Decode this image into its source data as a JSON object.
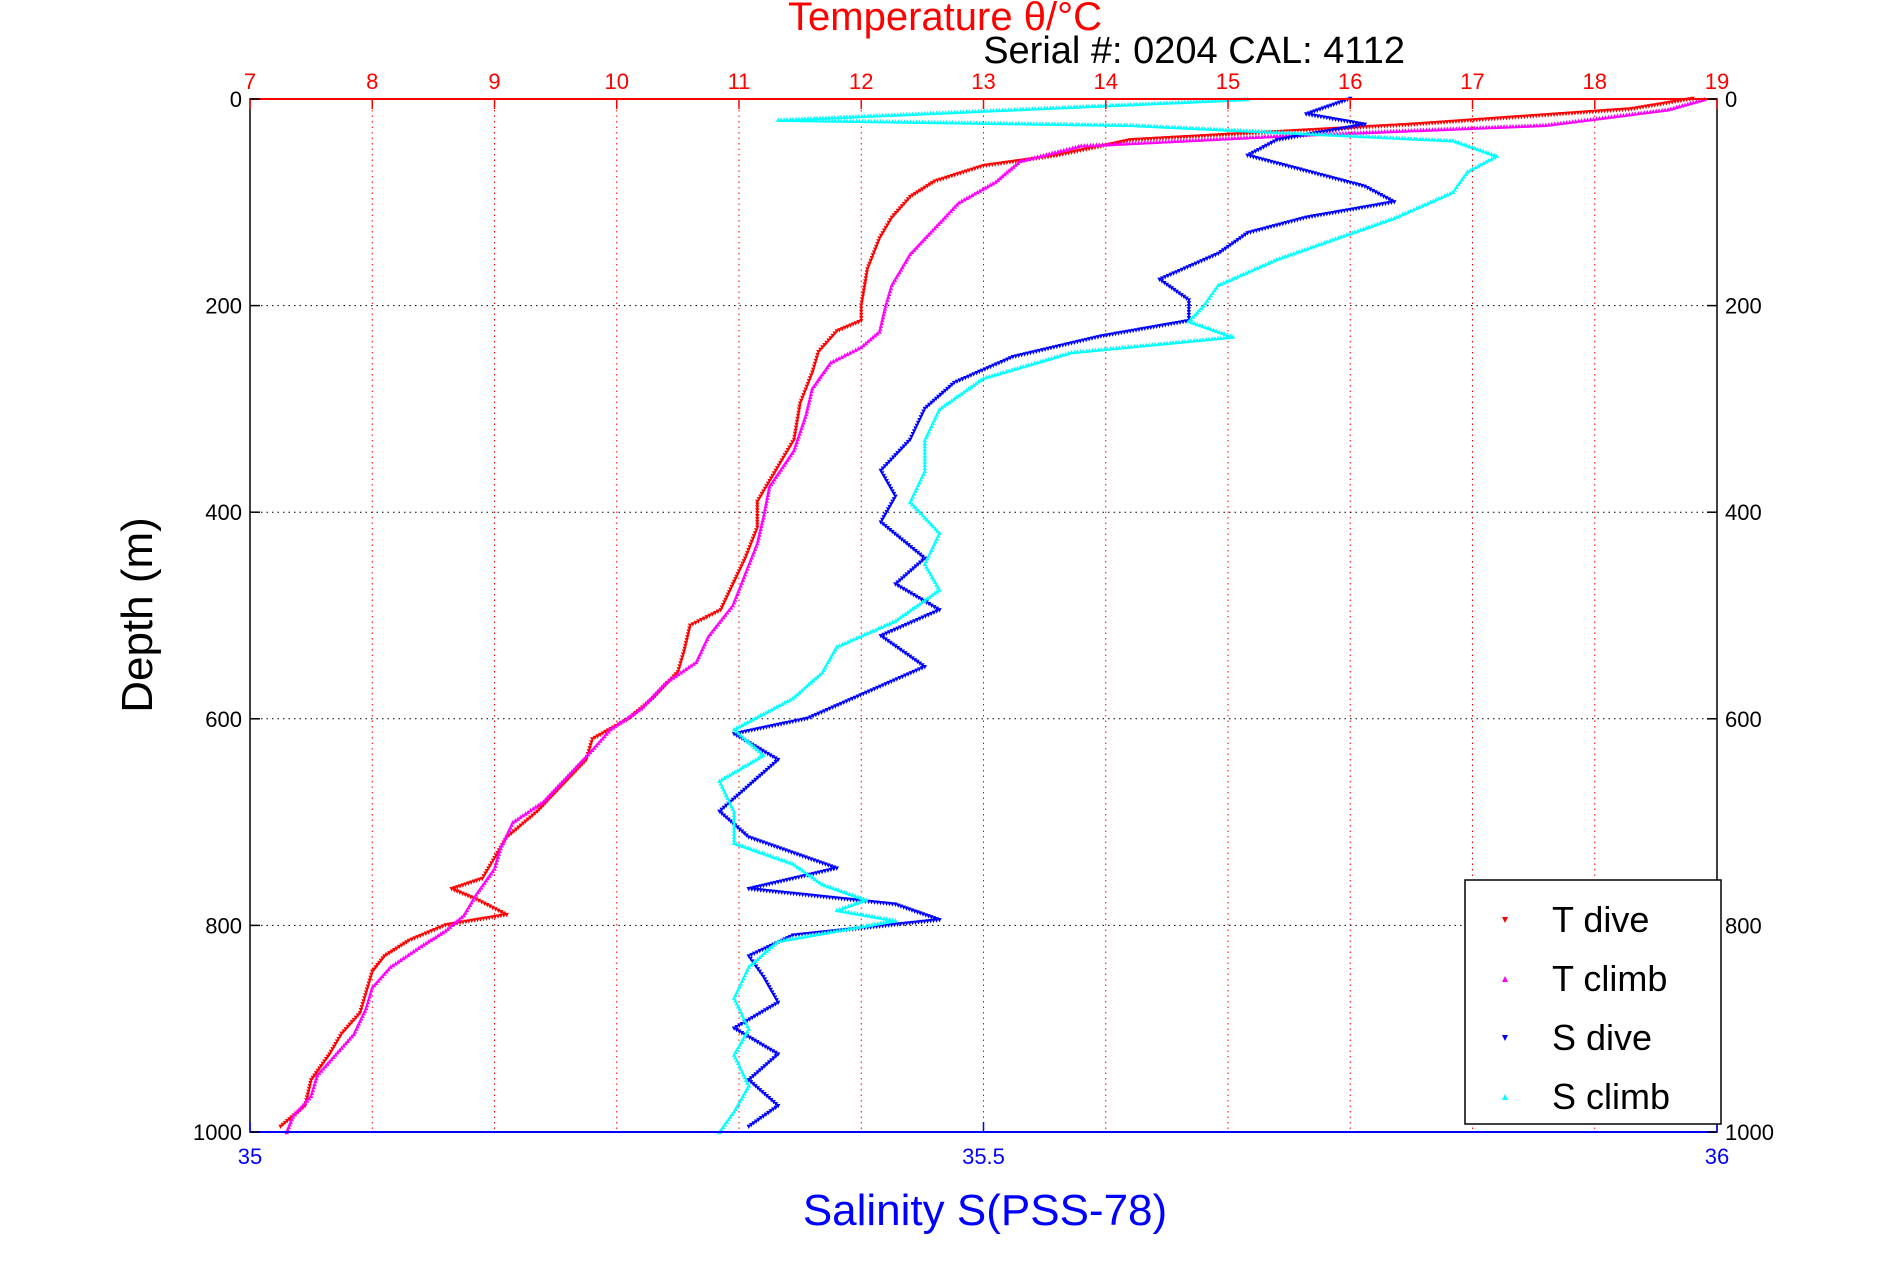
{
  "chart_data": {
    "type": "scatter",
    "title": "Temperature θ/°C",
    "serial_label": "Serial #: 0204  CAL: 4112",
    "ylabel": "Depth (m)",
    "xlabel_bottom": "Salinity S(PSS-78)",
    "ylim": [
      0,
      1000
    ],
    "y_reversed": true,
    "temperature_axis": {
      "range": [
        7,
        19
      ],
      "ticks": [
        7,
        8,
        9,
        10,
        11,
        12,
        13,
        14,
        15,
        16,
        17,
        18,
        19
      ],
      "color": "#ff0000"
    },
    "salinity_axis": {
      "range": [
        35,
        36
      ],
      "ticks": [
        "35",
        "35.5",
        "36"
      ],
      "color": "#0000ff"
    },
    "depth_ticks": [
      0,
      200,
      400,
      600,
      800,
      1000
    ],
    "grid": true,
    "legend_position": "bottom-right",
    "series": [
      {
        "name": "T dive",
        "axis": "temperature",
        "color": "#ff0000",
        "marker": "triangle-down",
        "points": [
          [
            18.8,
            0
          ],
          [
            18.3,
            10
          ],
          [
            16.5,
            25
          ],
          [
            14.2,
            40
          ],
          [
            13.6,
            55
          ],
          [
            13.0,
            65
          ],
          [
            12.6,
            80
          ],
          [
            12.4,
            95
          ],
          [
            12.25,
            115
          ],
          [
            12.15,
            135
          ],
          [
            12.05,
            165
          ],
          [
            12.0,
            200
          ],
          [
            12.0,
            215
          ],
          [
            11.8,
            225
          ],
          [
            11.65,
            245
          ],
          [
            11.6,
            265
          ],
          [
            11.5,
            295
          ],
          [
            11.45,
            330
          ],
          [
            11.3,
            360
          ],
          [
            11.15,
            390
          ],
          [
            11.15,
            415
          ],
          [
            11.05,
            445
          ],
          [
            10.95,
            470
          ],
          [
            10.85,
            495
          ],
          [
            10.6,
            510
          ],
          [
            10.55,
            535
          ],
          [
            10.5,
            555
          ],
          [
            10.3,
            580
          ],
          [
            10.1,
            600
          ],
          [
            9.8,
            620
          ],
          [
            9.75,
            640
          ],
          [
            9.55,
            665
          ],
          [
            9.35,
            690
          ],
          [
            9.1,
            715
          ],
          [
            9.0,
            735
          ],
          [
            8.9,
            755
          ],
          [
            8.65,
            765
          ],
          [
            8.85,
            775
          ],
          [
            9.1,
            790
          ],
          [
            8.6,
            800
          ],
          [
            8.3,
            815
          ],
          [
            8.1,
            830
          ],
          [
            8.0,
            845
          ],
          [
            7.95,
            865
          ],
          [
            7.9,
            885
          ],
          [
            7.75,
            905
          ],
          [
            7.65,
            925
          ],
          [
            7.5,
            950
          ],
          [
            7.45,
            975
          ],
          [
            7.25,
            995
          ]
        ]
      },
      {
        "name": "T climb",
        "axis": "temperature",
        "color": "#ff00ff",
        "marker": "triangle-up",
        "points": [
          [
            18.9,
            0
          ],
          [
            18.6,
            10
          ],
          [
            17.6,
            25
          ],
          [
            15.5,
            35
          ],
          [
            13.8,
            45
          ],
          [
            13.3,
            60
          ],
          [
            13.1,
            80
          ],
          [
            12.8,
            100
          ],
          [
            12.6,
            125
          ],
          [
            12.4,
            150
          ],
          [
            12.25,
            180
          ],
          [
            12.2,
            200
          ],
          [
            12.15,
            225
          ],
          [
            12.0,
            240
          ],
          [
            11.75,
            255
          ],
          [
            11.6,
            280
          ],
          [
            11.55,
            305
          ],
          [
            11.45,
            340
          ],
          [
            11.25,
            375
          ],
          [
            11.2,
            405
          ],
          [
            11.15,
            430
          ],
          [
            11.05,
            460
          ],
          [
            10.95,
            490
          ],
          [
            10.75,
            520
          ],
          [
            10.65,
            545
          ],
          [
            10.4,
            565
          ],
          [
            10.2,
            590
          ],
          [
            9.95,
            610
          ],
          [
            9.8,
            630
          ],
          [
            9.6,
            655
          ],
          [
            9.4,
            680
          ],
          [
            9.15,
            700
          ],
          [
            9.05,
            725
          ],
          [
            9.0,
            745
          ],
          [
            8.85,
            770
          ],
          [
            8.75,
            790
          ],
          [
            8.6,
            805
          ],
          [
            8.4,
            820
          ],
          [
            8.15,
            840
          ],
          [
            8.0,
            860
          ],
          [
            7.95,
            880
          ],
          [
            7.85,
            905
          ],
          [
            7.7,
            925
          ],
          [
            7.55,
            945
          ],
          [
            7.5,
            965
          ],
          [
            7.35,
            985
          ],
          [
            7.3,
            1000
          ]
        ]
      },
      {
        "name": "S dive",
        "axis": "salinity",
        "color": "#0000ff",
        "marker": "triangle-down",
        "points": [
          [
            35.75,
            0
          ],
          [
            35.72,
            15
          ],
          [
            35.76,
            25
          ],
          [
            35.7,
            40
          ],
          [
            35.68,
            55
          ],
          [
            35.72,
            70
          ],
          [
            35.76,
            85
          ],
          [
            35.78,
            100
          ],
          [
            35.72,
            115
          ],
          [
            35.68,
            130
          ],
          [
            35.66,
            150
          ],
          [
            35.62,
            175
          ],
          [
            35.64,
            195
          ],
          [
            35.64,
            215
          ],
          [
            35.58,
            230
          ],
          [
            35.52,
            250
          ],
          [
            35.48,
            275
          ],
          [
            35.46,
            300
          ],
          [
            35.45,
            330
          ],
          [
            35.43,
            360
          ],
          [
            35.44,
            385
          ],
          [
            35.43,
            410
          ],
          [
            35.46,
            445
          ],
          [
            35.44,
            470
          ],
          [
            35.47,
            495
          ],
          [
            35.43,
            520
          ],
          [
            35.46,
            550
          ],
          [
            35.42,
            575
          ],
          [
            35.38,
            600
          ],
          [
            35.33,
            615
          ],
          [
            35.36,
            640
          ],
          [
            35.34,
            665
          ],
          [
            35.32,
            690
          ],
          [
            35.34,
            715
          ],
          [
            35.4,
            745
          ],
          [
            35.34,
            765
          ],
          [
            35.44,
            780
          ],
          [
            35.47,
            795
          ],
          [
            35.37,
            810
          ],
          [
            35.34,
            830
          ],
          [
            35.35,
            850
          ],
          [
            35.36,
            875
          ],
          [
            35.33,
            900
          ],
          [
            35.36,
            925
          ],
          [
            35.34,
            950
          ],
          [
            35.36,
            975
          ],
          [
            35.34,
            995
          ]
        ]
      },
      {
        "name": "S climb",
        "axis": "salinity",
        "color": "#00ffff",
        "marker": "triangle-up",
        "points": [
          [
            35.68,
            0
          ],
          [
            35.36,
            20
          ],
          [
            35.6,
            25
          ],
          [
            35.82,
            40
          ],
          [
            35.85,
            55
          ],
          [
            35.83,
            70
          ],
          [
            35.82,
            90
          ],
          [
            35.78,
            115
          ],
          [
            35.74,
            135
          ],
          [
            35.7,
            155
          ],
          [
            35.66,
            180
          ],
          [
            35.65,
            200
          ],
          [
            35.64,
            215
          ],
          [
            35.67,
            230
          ],
          [
            35.56,
            245
          ],
          [
            35.5,
            270
          ],
          [
            35.47,
            300
          ],
          [
            35.46,
            330
          ],
          [
            35.46,
            360
          ],
          [
            35.45,
            390
          ],
          [
            35.47,
            420
          ],
          [
            35.46,
            450
          ],
          [
            35.47,
            475
          ],
          [
            35.44,
            505
          ],
          [
            35.4,
            530
          ],
          [
            35.39,
            555
          ],
          [
            35.37,
            580
          ],
          [
            35.33,
            610
          ],
          [
            35.35,
            635
          ],
          [
            35.32,
            660
          ],
          [
            35.33,
            690
          ],
          [
            35.33,
            720
          ],
          [
            35.37,
            740
          ],
          [
            35.39,
            760
          ],
          [
            35.42,
            775
          ],
          [
            35.4,
            785
          ],
          [
            35.44,
            795
          ],
          [
            35.36,
            815
          ],
          [
            35.34,
            840
          ],
          [
            35.33,
            870
          ],
          [
            35.34,
            900
          ],
          [
            35.33,
            925
          ],
          [
            35.34,
            955
          ],
          [
            35.33,
            980
          ],
          [
            35.32,
            1000
          ]
        ]
      }
    ]
  }
}
